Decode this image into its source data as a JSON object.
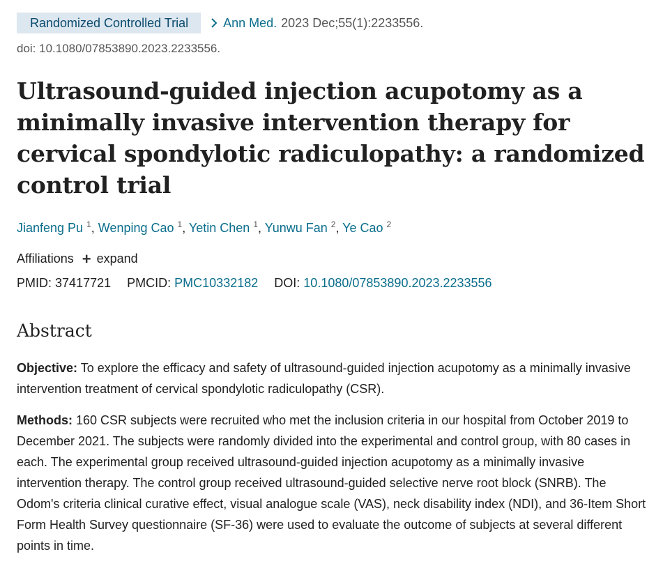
{
  "publication_type": "Randomized Controlled Trial",
  "journal": "Ann Med.",
  "citation": "2023 Dec;55(1):2233556.",
  "doi_line": "doi: 10.1080/07853890.2023.2233556.",
  "title": "Ultrasound-guided injection acupotomy as a minimally invasive intervention therapy for cervical spondylotic radiculopathy: a randomized control trial",
  "authors": [
    {
      "name": "Jianfeng Pu",
      "aff": "1"
    },
    {
      "name": "Wenping Cao",
      "aff": "1"
    },
    {
      "name": "Yetin Chen",
      "aff": "1"
    },
    {
      "name": "Yunwu Fan",
      "aff": "2"
    },
    {
      "name": "Ye Cao",
      "aff": "2"
    }
  ],
  "affiliations_label": "Affiliations",
  "expand_label": "expand",
  "ids": {
    "pmid_label": "PMID:",
    "pmid": "37417721",
    "pmcid_label": "PMCID:",
    "pmcid": "PMC10332182",
    "doi_label": "DOI:",
    "doi": "10.1080/07853890.2023.2233556"
  },
  "abstract_heading": "Abstract",
  "objective_label": "Objective:",
  "objective_text": "To explore the efficacy and safety of ultrasound-guided injection acupotomy as a minimally invasive intervention treatment of cervical spondylotic radiculopathy (CSR).",
  "methods_label": "Methods:",
  "methods_text": "160 CSR subjects were recruited who met the inclusion criteria in our hospital from October 2019 to December 2021. The subjects were randomly divided into the experimental and control group, with 80 cases in each. The experimental group received ultrasound-guided injection acupotomy as a minimally invasive intervention therapy. The control group received ultrasound-guided selective nerve root block (SNRB). The Odom's criteria clinical curative effect, visual analogue scale (VAS), neck disability index (NDI), and 36-Item Short Form Health Survey questionnaire (SF-36) were used to evaluate the outcome of subjects at several different points in time.",
  "colors": {
    "link": "#0b6e8c",
    "badge_bg": "#dde7ef",
    "text": "#212121"
  }
}
